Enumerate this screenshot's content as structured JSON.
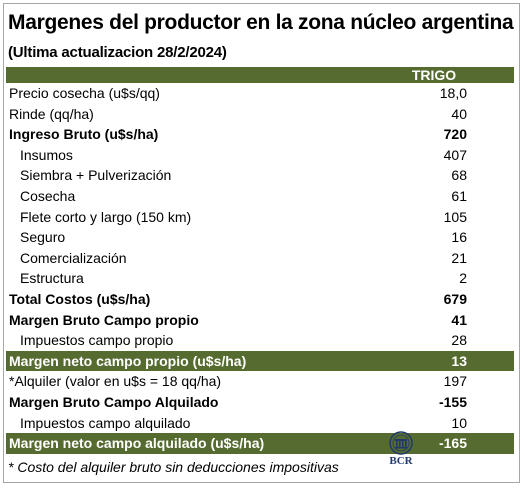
{
  "title": "Margenes  del productor en la zona núcleo argentina",
  "subtitle": "(Ultima actualizacion 28/2/2024)",
  "column_header": "TRIGO",
  "rows": [
    {
      "label": "Precio cosecha (u$s/qq)",
      "value": "18,0"
    },
    {
      "label": "Rinde (qq/ha)",
      "value": "40"
    },
    {
      "label": "Ingreso Bruto (u$s/ha)",
      "value": "720"
    },
    {
      "label": "Insumos",
      "value": "407"
    },
    {
      "label": "Siembra + Pulverización",
      "value": "68"
    },
    {
      "label": "Cosecha",
      "value": "61"
    },
    {
      "label": "Flete corto y largo (150 km)",
      "value": "105"
    },
    {
      "label": "Seguro",
      "value": "16"
    },
    {
      "label": "Comercialización",
      "value": "21"
    },
    {
      "label": "Estructura",
      "value": "2"
    },
    {
      "label": "Total Costos (u$s/ha)",
      "value": "679"
    },
    {
      "label": "Margen Bruto Campo propio",
      "value": "41"
    },
    {
      "label": "Impuestos  campo propio",
      "value": "28"
    },
    {
      "label": "Margen neto campo propio (u$s/ha)",
      "value": "13"
    },
    {
      "label": "*Alquiler (valor en u$s = 18 qq/ha)",
      "value": "197"
    },
    {
      "label": "Margen Bruto Campo Alquilado",
      "value": "-155"
    },
    {
      "label": "Impuestos campo alquilado",
      "value": "10"
    },
    {
      "label": "Margen neto campo alquilado (u$s/ha)",
      "value": "-165"
    }
  ],
  "footnote": "* Costo del alquiler bruto sin deducciones impositivas",
  "logo_text": "BCR",
  "colors": {
    "accent": "#566b2f",
    "logo": "#1f3a6b"
  }
}
